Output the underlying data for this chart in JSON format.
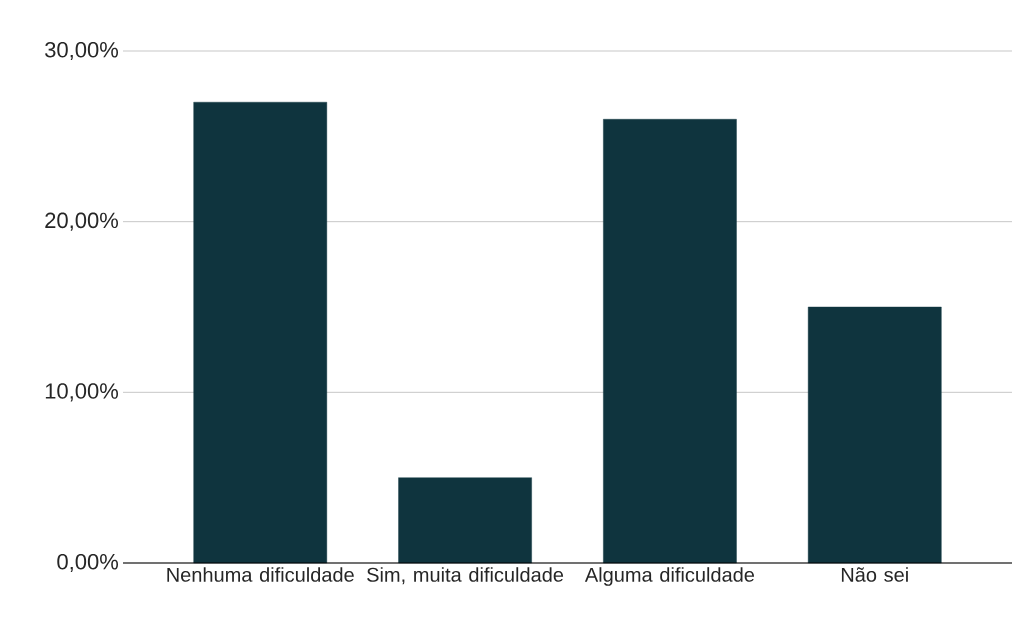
{
  "chart_data": {
    "type": "bar",
    "categories": [
      "Nenhuma dificuldade",
      "Sim, muita dificuldade",
      "Alguma dificuldade",
      "Não sei"
    ],
    "values": [
      27,
      5,
      26,
      15
    ],
    "color": "#0f343e",
    "ylim": [
      0,
      30
    ],
    "yticks": [
      {
        "value": 0,
        "label": "0,00%"
      },
      {
        "value": 10,
        "label": "10,00%"
      },
      {
        "value": 20,
        "label": "20,00%"
      },
      {
        "value": 30,
        "label": "30,00%"
      }
    ],
    "grid": "y"
  }
}
